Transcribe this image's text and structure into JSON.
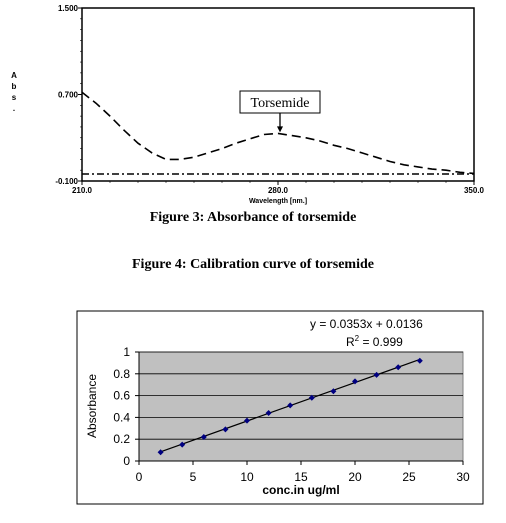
{
  "captions": {
    "figure3": "Figure 3: Absorbance of torsemide",
    "figure4": "Figure 4: Calibration curve of torsemide"
  },
  "chart_data": [
    {
      "type": "line",
      "title": "",
      "xlabel": "Wavelength [nm.]",
      "ylabel": "Abs.",
      "xlim": [
        210.0,
        350.0
      ],
      "ylim": [
        -0.1,
        1.5
      ],
      "x_tick_labels": [
        "210.0",
        "280.0",
        "350.0"
      ],
      "y_tick_labels": [
        "1.500",
        "0.700",
        "-0.100"
      ],
      "annotation": "Torsemide",
      "annotation_x": 280,
      "series": [
        {
          "style": "dashed",
          "x": [
            210,
            215,
            220,
            225,
            230,
            235,
            240,
            245,
            250,
            255,
            260,
            265,
            270,
            275,
            280,
            285,
            290,
            295,
            300,
            305,
            310,
            315,
            320,
            325,
            330,
            335,
            340,
            345,
            350
          ],
          "y": [
            0.72,
            0.62,
            0.5,
            0.37,
            0.25,
            0.16,
            0.1,
            0.1,
            0.12,
            0.16,
            0.2,
            0.25,
            0.29,
            0.33,
            0.34,
            0.32,
            0.3,
            0.27,
            0.23,
            0.2,
            0.16,
            0.12,
            0.08,
            0.05,
            0.03,
            0.01,
            0.0,
            -0.02,
            -0.03
          ]
        },
        {
          "style": "dash-dot",
          "x": [
            210,
            350
          ],
          "y": [
            -0.035,
            -0.035
          ]
        }
      ],
      "colors": {
        "curve": "#000000"
      }
    },
    {
      "type": "scatter",
      "xlabel": "conc.in ug/ml",
      "ylabel": "Absorbance",
      "xlim": [
        0,
        30
      ],
      "ylim": [
        0,
        1
      ],
      "x_ticks": [
        0,
        5,
        10,
        15,
        20,
        25,
        30
      ],
      "y_ticks": [
        0,
        0.2,
        0.4,
        0.6,
        0.8,
        1
      ],
      "grid": true,
      "equation": "y = 0.0353x + 0.0136",
      "r2_label": "R",
      "r2_sup": "2",
      "r2_value": " = 0.999",
      "trendline": {
        "slope": 0.0353,
        "intercept": 0.0136,
        "x_range": [
          2,
          26
        ]
      },
      "points": {
        "x": [
          2,
          4,
          6,
          8,
          10,
          12,
          14,
          16,
          18,
          20,
          22,
          24,
          26
        ],
        "y": [
          0.08,
          0.15,
          0.22,
          0.29,
          0.37,
          0.44,
          0.51,
          0.58,
          0.64,
          0.73,
          0.79,
          0.86,
          0.92
        ]
      },
      "colors": {
        "plot_bg": "#c0c0c0",
        "marker": "#000080",
        "line": "#000000"
      }
    }
  ]
}
